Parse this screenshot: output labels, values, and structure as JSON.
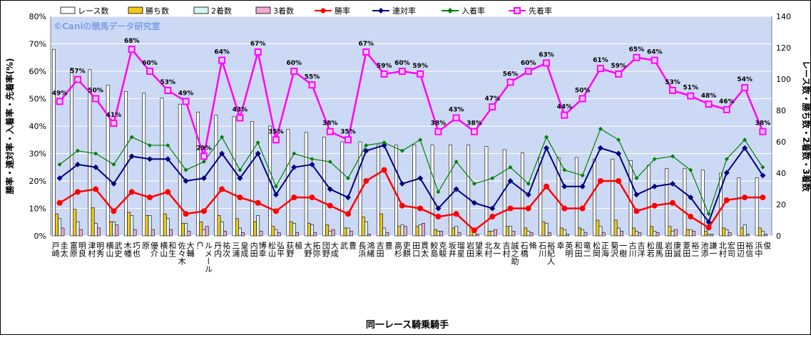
{
  "watermark": "©Caniの競馬データ研究室",
  "chart_data": {
    "type": "bar",
    "xlabel": "同一レース騎乗騎手",
    "ylabel_left": "勝率・連対率・入着率・先着率(%)",
    "ylabel_right": "レース数・勝ち数・2着数・3着数",
    "ylim_left": [
      0,
      80
    ],
    "ylim_right": [
      0,
      140
    ],
    "left_ticks": [
      "0%",
      "10%",
      "20%",
      "30%",
      "40%",
      "50%",
      "60%",
      "70%",
      "80%"
    ],
    "right_ticks": [
      "0",
      "20",
      "40",
      "60",
      "80",
      "100",
      "120",
      "140"
    ],
    "grid": true,
    "legend_position": "top",
    "categories": [
      "戸崎 圭太",
      "富原 明良",
      "津村 明秀",
      "横山 武史",
      "木幡 巧也",
      "原 優介",
      "横山 和生",
      "佐々木 大輔",
      "C. ルメール",
      "丹内 祐次",
      "三浦 皇成",
      "内田 博幸",
      "松山 弘平",
      "荻野 極",
      "大野 拓弥",
      "団野 大成",
      "武 豊",
      "長浜 鴻緒",
      "吉田 豊",
      "高杉 吏麒",
      "田口 貫太",
      "鮫島 克駿",
      "坂井 瑠星",
      "岩田 望来",
      "北村 友一",
      "吉村 誠之助",
      "石橋 脩",
      "石川 裕紀人",
      "幸 英明",
      "和田 竜二",
      "松岡 正海",
      "菊沢 一樹",
      "古川 吉洋",
      "松若 風馬",
      "岩田 康誠",
      "菱田 裕二",
      "池添 謙一",
      "北村 宏司",
      "田辺 裕信",
      "浜中 俊"
    ],
    "bar_series": [
      {
        "name": "レース数",
        "axis": "right",
        "color": "#ffffff",
        "values": [
          119,
          107,
          106,
          96,
          92,
          91,
          88,
          84,
          79,
          77,
          76,
          73,
          70,
          68,
          66,
          63,
          60,
          60,
          58,
          58,
          58,
          58,
          58,
          58,
          57,
          55,
          53,
          50,
          50,
          50,
          49,
          49,
          48,
          45,
          43,
          43,
          42,
          40,
          37,
          37
        ]
      },
      {
        "name": "勝ち数",
        "axis": "right",
        "color": "#f2c81c",
        "values": [
          14,
          17,
          18,
          9,
          15,
          13,
          14,
          8,
          9,
          13,
          11,
          9,
          6,
          9,
          8,
          7,
          5,
          12,
          14,
          6,
          6,
          4,
          5,
          5,
          3,
          6,
          5,
          9,
          5,
          5,
          10,
          10,
          5,
          6,
          6,
          4,
          3,
          5,
          5,
          5
        ]
      },
      {
        "name": "2着数",
        "axis": "right",
        "color": "#d8f5f5",
        "values": [
          11,
          9,
          8,
          9,
          13,
          13,
          11,
          8,
          4,
          9,
          5,
          13,
          4,
          8,
          7,
          3,
          5,
          9,
          5,
          7,
          7,
          3,
          6,
          4,
          3,
          6,
          3,
          8,
          4,
          4,
          6,
          5,
          3,
          3,
          3,
          4,
          1,
          4,
          7,
          3
        ]
      },
      {
        "name": "3着数",
        "axis": "right",
        "color": "#f4a8d2",
        "values": [
          5,
          4,
          5,
          7,
          4,
          4,
          4,
          3,
          6,
          3,
          2,
          3,
          2,
          2,
          2,
          4,
          3,
          1,
          2,
          6,
          8,
          3,
          2,
          1,
          4,
          3,
          2,
          2,
          1,
          2,
          2,
          3,
          2,
          2,
          4,
          3,
          1,
          2,
          1,
          1
        ]
      }
    ],
    "line_series": [
      {
        "name": "勝率",
        "axis": "left",
        "color": "#ff0000",
        "marker": "circle",
        "values": [
          12,
          16,
          17,
          9,
          16,
          14,
          16,
          8,
          9,
          17,
          14,
          12,
          9,
          14,
          14,
          11,
          8,
          20,
          24,
          11,
          10,
          7,
          8,
          2,
          7,
          10,
          10,
          18,
          10,
          10,
          20,
          20,
          9,
          11,
          12,
          7,
          3,
          13,
          14,
          14
        ],
        "labels": []
      },
      {
        "name": "連対率",
        "axis": "left",
        "color": "#00007f",
        "marker": "diamond",
        "values": [
          21,
          26,
          25,
          19,
          29,
          28,
          28,
          20,
          21,
          30,
          21,
          30,
          15,
          25,
          26,
          17,
          14,
          31,
          33,
          19,
          21,
          10,
          17,
          12,
          10,
          20,
          15,
          32,
          18,
          18,
          32,
          30,
          15,
          18,
          19,
          14,
          5,
          23,
          32,
          22
        ],
        "labels": []
      },
      {
        "name": "入着率",
        "axis": "left",
        "color": "#008000",
        "marker": "diamond",
        "values": [
          26,
          31,
          30,
          26,
          36,
          33,
          33,
          24,
          27,
          36,
          24,
          34,
          18,
          30,
          28,
          27,
          21,
          33,
          34,
          31,
          35,
          16,
          27,
          19,
          21,
          25,
          19,
          36,
          24,
          22,
          39,
          35,
          21,
          28,
          29,
          24,
          8,
          28,
          35,
          25
        ],
        "labels": []
      },
      {
        "name": "先着率",
        "axis": "left",
        "color": "#ff00ff",
        "marker": "square",
        "values": [
          49,
          57,
          50,
          41,
          68,
          60,
          53,
          49,
          29,
          64,
          43,
          67,
          35,
          60,
          55,
          38,
          35,
          67,
          59,
          60,
          59,
          38,
          43,
          38,
          47,
          56,
          60,
          63,
          44,
          50,
          61,
          59,
          65,
          64,
          53,
          51,
          48,
          46,
          54,
          38
        ],
        "labels": [
          "49%",
          "57%",
          "50%",
          "41%",
          "68%",
          "60%",
          "53%",
          "49%",
          "29%",
          "64%",
          "43%",
          "67%",
          "35%",
          "60%",
          "55%",
          "38%",
          "35%",
          "67%",
          "59%",
          "60%",
          "59%",
          "38%",
          "43%",
          "38%",
          "47%",
          "56%",
          "60%",
          "63%",
          "44%",
          "50%",
          "61%",
          "59%",
          "65%",
          "64%",
          "53%",
          "51%",
          "48%",
          "46%",
          "54%",
          "38%"
        ]
      }
    ]
  }
}
